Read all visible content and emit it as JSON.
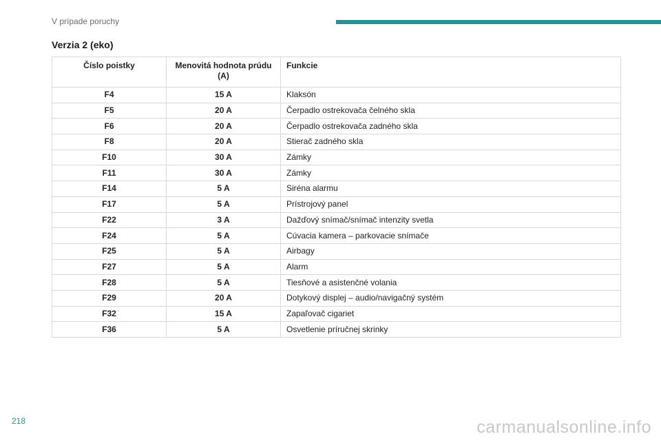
{
  "header": {
    "section_title": "V prípade poruchy",
    "accent_color": "#2a8f96"
  },
  "subtitle": "Verzia 2 (eko)",
  "table": {
    "columns": [
      "Číslo poistky",
      "Menovitá hodnota prúdu (A)",
      "Funkcie"
    ],
    "rows": [
      {
        "fuse": "F4",
        "amp": "15 A",
        "function": "Klaksón"
      },
      {
        "fuse": "F5",
        "amp": "20 A",
        "function": "Čerpadlo ostrekovača čelného skla"
      },
      {
        "fuse": "F6",
        "amp": "20 A",
        "function": "Čerpadlo ostrekovača zadného skla"
      },
      {
        "fuse": "F8",
        "amp": "20 A",
        "function": "Stierač zadného skla"
      },
      {
        "fuse": "F10",
        "amp": "30 A",
        "function": "Zámky"
      },
      {
        "fuse": "F11",
        "amp": "30 A",
        "function": "Zámky"
      },
      {
        "fuse": "F14",
        "amp": "5 A",
        "function": "Siréna alarmu"
      },
      {
        "fuse": "F17",
        "amp": "5 A",
        "function": "Prístrojový panel"
      },
      {
        "fuse": "F22",
        "amp": "3 A",
        "function": "Dažďový snímač/snímač intenzity svetla"
      },
      {
        "fuse": "F24",
        "amp": "5 A",
        "function": "Cúvacia kamera – parkovacie snímače"
      },
      {
        "fuse": "F25",
        "amp": "5 A",
        "function": "Airbagy"
      },
      {
        "fuse": "F27",
        "amp": "5 A",
        "function": "Alarm"
      },
      {
        "fuse": "F28",
        "amp": "5 A",
        "function": "Tiesňové a asistenčné volania"
      },
      {
        "fuse": "F29",
        "amp": "20 A",
        "function": "Dotykový displej – audio/navigačný systém"
      },
      {
        "fuse": "F32",
        "amp": "15 A",
        "function": "Zapaľovač cigariet"
      },
      {
        "fuse": "F36",
        "amp": "5 A",
        "function": "Osvetlenie príručnej skrinky"
      }
    ]
  },
  "footer": {
    "page_number": "218",
    "watermark": "carmanualsonline.info"
  }
}
